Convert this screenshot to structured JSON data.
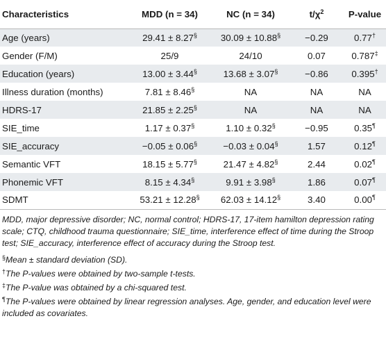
{
  "table": {
    "headers": [
      {
        "main": "Characteristics",
        "sup": ""
      },
      {
        "main": "MDD (n = 34)",
        "sup": ""
      },
      {
        "main": "NC (n = 34)",
        "sup": ""
      },
      {
        "main": "t/χ",
        "sup": "2"
      },
      {
        "main": "P-value",
        "sup": ""
      }
    ],
    "rows": [
      {
        "name": "Age (years)",
        "cells": [
          {
            "v": "29.41 ± 8.27",
            "s": "§"
          },
          {
            "v": "30.09 ± 10.88",
            "s": "§"
          },
          {
            "v": "−0.29",
            "s": ""
          },
          {
            "v": "0.77",
            "s": "†"
          }
        ]
      },
      {
        "name": "Gender (F/M)",
        "cells": [
          {
            "v": "25/9",
            "s": ""
          },
          {
            "v": "24/10",
            "s": ""
          },
          {
            "v": "0.07",
            "s": ""
          },
          {
            "v": "0.787",
            "s": "‡"
          }
        ]
      },
      {
        "name": "Education (years)",
        "cells": [
          {
            "v": "13.00 ± 3.44",
            "s": "§"
          },
          {
            "v": "13.68 ± 3.07",
            "s": "§"
          },
          {
            "v": "−0.86",
            "s": ""
          },
          {
            "v": "0.395",
            "s": "†"
          }
        ]
      },
      {
        "name": "Illness duration (months)",
        "cells": [
          {
            "v": "7.81 ± 8.46",
            "s": "§"
          },
          {
            "v": "NA",
            "s": ""
          },
          {
            "v": "NA",
            "s": ""
          },
          {
            "v": "NA",
            "s": ""
          }
        ]
      },
      {
        "name": "HDRS-17",
        "cells": [
          {
            "v": "21.85 ± 2.25",
            "s": "§"
          },
          {
            "v": "NA",
            "s": ""
          },
          {
            "v": "NA",
            "s": ""
          },
          {
            "v": "NA",
            "s": ""
          }
        ]
      },
      {
        "name": "SIE_time",
        "cells": [
          {
            "v": "1.17 ± 0.37",
            "s": "§"
          },
          {
            "v": "1.10 ± 0.32",
            "s": "§"
          },
          {
            "v": "−0.95",
            "s": ""
          },
          {
            "v": "0.35",
            "s": "¶"
          }
        ]
      },
      {
        "name": "SIE_accuracy",
        "cells": [
          {
            "v": "−0.05 ± 0.06",
            "s": "§"
          },
          {
            "v": "−0.03 ± 0.04",
            "s": "§"
          },
          {
            "v": "1.57",
            "s": ""
          },
          {
            "v": "0.12",
            "s": "¶"
          }
        ]
      },
      {
        "name": "Semantic VFT",
        "cells": [
          {
            "v": "18.15 ± 5.77",
            "s": "§"
          },
          {
            "v": "21.47 ± 4.82",
            "s": "§"
          },
          {
            "v": "2.44",
            "s": ""
          },
          {
            "v": "0.02",
            "s": "¶"
          }
        ]
      },
      {
        "name": "Phonemic VFT",
        "cells": [
          {
            "v": "8.15 ± 4.34",
            "s": "§"
          },
          {
            "v": "9.91 ± 3.98",
            "s": "§"
          },
          {
            "v": "1.86",
            "s": ""
          },
          {
            "v": "0.07",
            "s": "¶"
          }
        ]
      },
      {
        "name": "SDMT",
        "cells": [
          {
            "v": "53.21 ± 12.28",
            "s": "§"
          },
          {
            "v": "62.03 ± 14.12",
            "s": "§"
          },
          {
            "v": "3.40",
            "s": ""
          },
          {
            "v": "0.00",
            "s": "¶"
          }
        ]
      }
    ]
  },
  "footnotes": {
    "abbrev": "MDD, major depressive disorder; NC, normal control; HDRS-17, 17-item hamilton depression rating scale; CTQ, childhood trauma questionnaire; SIE_time, interference effect of time during the Stroop test; SIE_accuracy, interference effect of accuracy during the Stroop test.",
    "notes": [
      {
        "mark": "§",
        "text": "Mean ± standard deviation (SD)."
      },
      {
        "mark": "†",
        "text": "The P-values were obtained by two-sample t-tests."
      },
      {
        "mark": "‡",
        "text": "The P-value was obtained by a chi-squared test."
      },
      {
        "mark": "¶",
        "text": "The P-values were obtained by linear regression analyses. Age, gender, and education level were included as covariates."
      }
    ]
  }
}
